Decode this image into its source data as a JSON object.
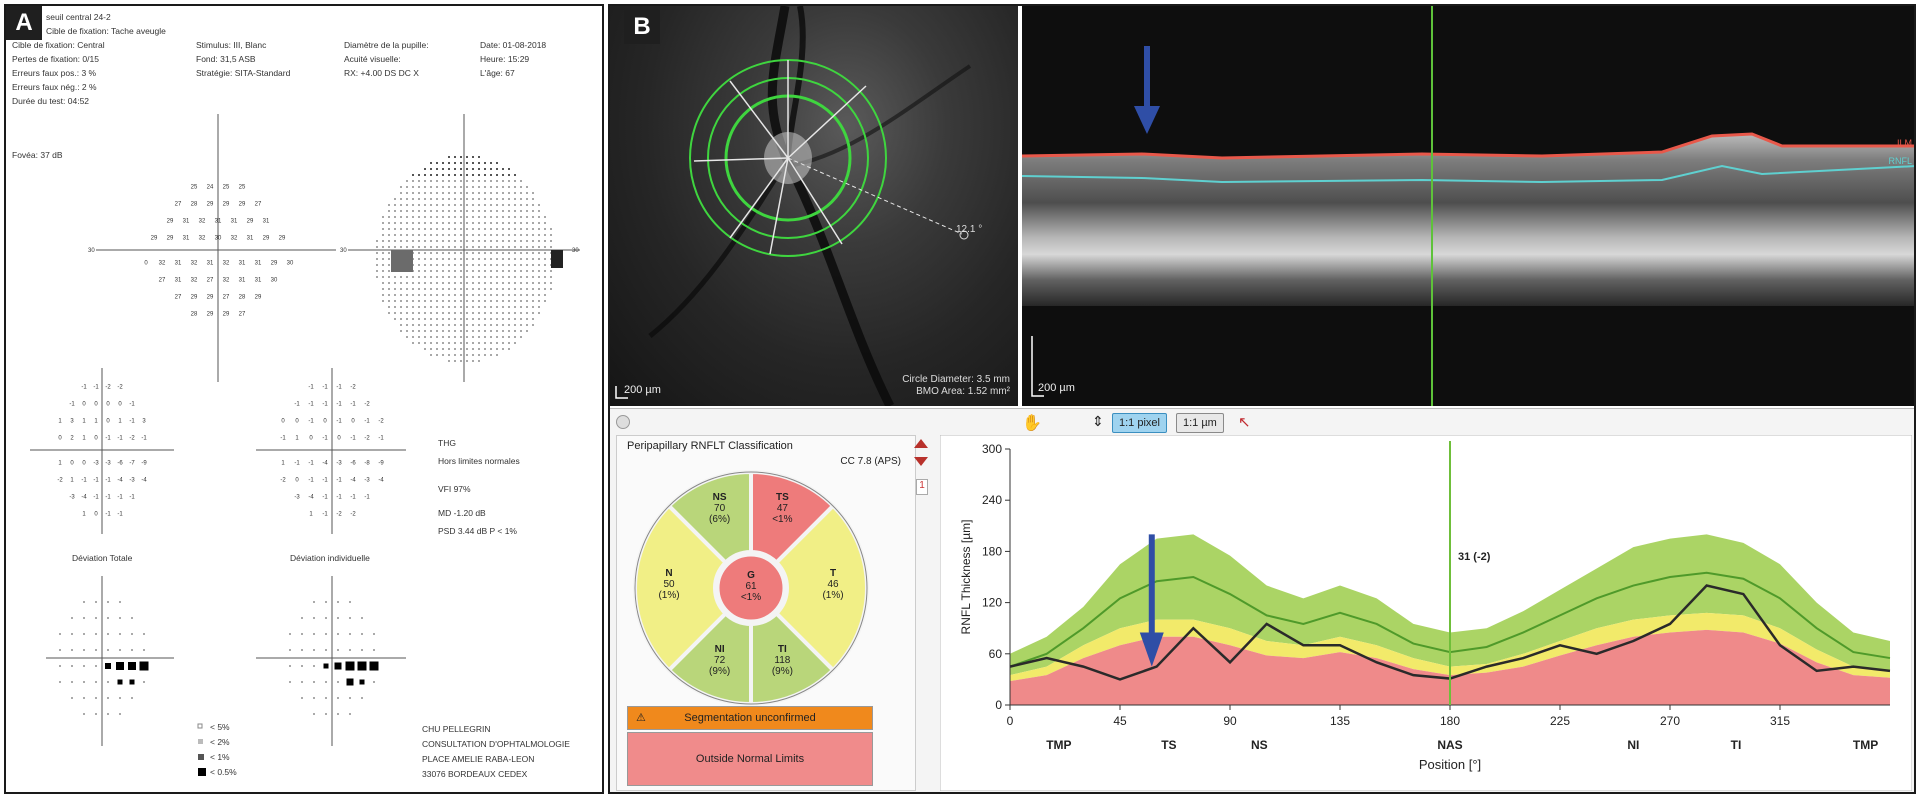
{
  "panel_a": {
    "label": "A",
    "header_left": [
      "seuil central 24-2",
      "Cible de fixation: Tache aveugle",
      "Cible de fixation: Central",
      "Pertes de fixation: 0/15",
      "Erreurs faux pos.: 3 %",
      "Erreurs faux nég.: 2 %",
      "Durée du test: 04:52"
    ],
    "header_mid": [
      "Stimulus: III, Blanc",
      "Fond: 31,5 ASB",
      "Stratégie: SITA-Standard"
    ],
    "header_mid2": [
      "Diamètre de la pupille:",
      "Acuité visuelle:",
      "RX: +4.00 DS      DC X"
    ],
    "header_right": [
      "Date: 01-08-2018",
      "Heure: 15:29",
      "L'âge: 67"
    ],
    "fovea": "Fovéa: 37 dB",
    "ght_label": "THG",
    "ght_value": "Hors limites normales",
    "vfi": "VFI      97%",
    "md": "MD      -1.20 dB",
    "psd": "PSD     3.44 dB  P < 1%",
    "total_dev_title": "Déviation Totale",
    "pattern_dev_title": "Déviation individuelle",
    "legend": [
      "< 5%",
      "< 2%",
      "< 1%",
      "< 0.5%"
    ],
    "address": [
      "CHU PELLEGRIN",
      "CONSULTATION D'OPHTALMOLOGIE",
      "PLACE AMELIE RABA-LEON",
      "33076 BORDEAUX CEDEX"
    ],
    "threshold_rows": [
      [
        "25",
        "24",
        "25",
        "25"
      ],
      [
        "27",
        "28",
        "29",
        "29",
        "29",
        "27"
      ],
      [
        "29",
        "31",
        "32",
        "31",
        "31",
        "29",
        "31"
      ],
      [
        "29",
        "29",
        "31",
        "32",
        "30",
        "32",
        "31",
        "29",
        "29"
      ],
      [
        "0",
        "32",
        "31",
        "32",
        "31",
        "32",
        "31",
        "31",
        "29",
        "30"
      ],
      [
        "27",
        "31",
        "32",
        "27",
        "32",
        "31",
        "31",
        "30"
      ],
      [
        "27",
        "29",
        "29",
        "27",
        "28",
        "29"
      ],
      [
        "28",
        "29",
        "29",
        "27"
      ]
    ],
    "threshold_edge_left": "30",
    "threshold_edge_right": "30",
    "grey_edge_right": "30",
    "total_dev_rows": [
      [
        "-1",
        "-1",
        "-2",
        "-2"
      ],
      [
        "-1",
        "0",
        "0",
        "0",
        "0",
        "-1"
      ],
      [
        "1",
        "3",
        "1",
        "1",
        "0",
        "1",
        "-1",
        "3"
      ],
      [
        "0",
        "2",
        "1",
        "0",
        "-1",
        "-1",
        "-2",
        "-1"
      ],
      [
        "1",
        "0",
        "0",
        "-3",
        "-3",
        "-6",
        "-7",
        "-9"
      ],
      [
        "-2",
        "1",
        "-1",
        "-1",
        "-1",
        "-4",
        "-3",
        "-4"
      ],
      [
        "-3",
        "-4",
        "-1",
        "-1",
        "-1",
        "-1"
      ],
      [
        "1",
        "0",
        "-1",
        "-1"
      ]
    ],
    "pattern_dev_rows": [
      [
        "-1",
        "-1",
        "-1",
        "-2"
      ],
      [
        "-1",
        "-1",
        "-1",
        "-1",
        "-1",
        "-2"
      ],
      [
        "0",
        "0",
        "-1",
        "0",
        "-1",
        "0",
        "-1",
        "-2"
      ],
      [
        "-1",
        "1",
        "0",
        "-1",
        "0",
        "-1",
        "-2",
        "-1"
      ],
      [
        "1",
        "-1",
        "-1",
        "-4",
        "-3",
        "-6",
        "-8",
        "-9"
      ],
      [
        "-2",
        "0",
        "-1",
        "-1",
        "-1",
        "-4",
        "-3",
        "-4"
      ],
      [
        "-3",
        "-4",
        "-1",
        "-1",
        "-1",
        "-1"
      ],
      [
        "1",
        "-1",
        "-2",
        "-2"
      ]
    ]
  },
  "panel_b": {
    "label": "B",
    "fundus_angle": "12.1 °",
    "fundus_scale": "200 µm",
    "circle_diameter": "Circle Diameter: 3.5 mm",
    "bmo_area": "BMO Area: 1.52 mm²",
    "bscan_scale": "200 µm",
    "bscan_layer_top": "ILM",
    "bscan_layer_bottom": "RNFL",
    "toolbar": {
      "pixel_btn": "1:1 pixel",
      "um_btn": "1:1 µm"
    },
    "page_indicator": "1",
    "classification_title": "Peripapillary RNFLT Classification",
    "cc_label": "CC 7.8 (APS)",
    "sectors": [
      {
        "id": "NS",
        "name": "NS",
        "value": "70",
        "pct": "(6%)",
        "color": "#b9d67a"
      },
      {
        "id": "TS",
        "name": "TS",
        "value": "47",
        "pct": "<1%",
        "color": "#ee7b7b"
      },
      {
        "id": "T",
        "name": "T",
        "value": "46",
        "pct": "(1%)",
        "color": "#f1ef86"
      },
      {
        "id": "TI",
        "name": "TI",
        "value": "118",
        "pct": "(9%)",
        "color": "#b9d67a"
      },
      {
        "id": "NI",
        "name": "NI",
        "value": "72",
        "pct": "(9%)",
        "color": "#b9d67a"
      },
      {
        "id": "N",
        "name": "N",
        "value": "50",
        "pct": "(1%)",
        "color": "#f1ef86"
      },
      {
        "id": "G",
        "name": "G",
        "value": "61",
        "pct": "<1%",
        "color": "#ee7b7b"
      }
    ],
    "segmentation_warning": "Segmentation unconfirmed",
    "outside_limits": "Outside Normal Limits",
    "colors": {
      "green": "#9ccc4a",
      "yellow": "#f2ea6a",
      "red": "#ef8a8a",
      "orange": "#f0891c",
      "pink": "#f08b8b",
      "cursor": "#6fbf3a"
    }
  },
  "chart_data": {
    "type": "line",
    "title": "",
    "xlabel": "Position [°]",
    "ylabel": "RNFL Thickness [µm]",
    "xlim": [
      0,
      360
    ],
    "ylim": [
      0,
      300
    ],
    "xticks": [
      0,
      45,
      90,
      135,
      180,
      225,
      270,
      315
    ],
    "yticks": [
      0,
      60,
      120,
      180,
      240,
      300
    ],
    "sector_labels": [
      {
        "label": "TMP",
        "x": 20
      },
      {
        "label": "TS",
        "x": 65
      },
      {
        "label": "NS",
        "x": 102
      },
      {
        "label": "NAS",
        "x": 180
      },
      {
        "label": "NI",
        "x": 255
      },
      {
        "label": "TI",
        "x": 297
      },
      {
        "label": "TMP",
        "x": 350
      }
    ],
    "cursor": {
      "x": 180,
      "label": "31 (-2)"
    },
    "arrow_x": 58,
    "x": [
      0,
      15,
      30,
      45,
      60,
      75,
      90,
      105,
      120,
      135,
      150,
      165,
      180,
      195,
      210,
      225,
      240,
      255,
      270,
      285,
      300,
      315,
      330,
      345,
      360
    ],
    "series": [
      {
        "name": "",
        "role": "upper_normal",
        "values": [
          60,
          80,
          115,
          165,
          195,
          200,
          175,
          140,
          125,
          140,
          125,
          95,
          85,
          90,
          110,
          135,
          160,
          185,
          195,
          200,
          190,
          165,
          120,
          85,
          75
        ]
      },
      {
        "name": "",
        "role": "mean_normal",
        "values": [
          45,
          60,
          90,
          125,
          145,
          150,
          130,
          105,
          95,
          108,
          95,
          72,
          62,
          68,
          85,
          105,
          125,
          140,
          150,
          155,
          148,
          125,
          90,
          62,
          55
        ]
      },
      {
        "name": "",
        "role": "lower_5pct",
        "values": [
          35,
          45,
          70,
          90,
          100,
          100,
          90,
          75,
          70,
          80,
          70,
          55,
          45,
          48,
          60,
          75,
          90,
          100,
          105,
          108,
          105,
          90,
          65,
          45,
          40
        ]
      },
      {
        "name": "",
        "role": "lower_1pct",
        "values": [
          28,
          35,
          55,
          70,
          80,
          80,
          70,
          58,
          55,
          62,
          55,
          42,
          35,
          38,
          45,
          58,
          70,
          80,
          85,
          88,
          85,
          72,
          50,
          35,
          32
        ]
      },
      {
        "name": "",
        "role": "patient",
        "values": [
          45,
          55,
          45,
          30,
          45,
          90,
          50,
          95,
          70,
          70,
          50,
          35,
          31,
          45,
          55,
          70,
          60,
          75,
          95,
          140,
          130,
          70,
          40,
          45,
          40
        ]
      }
    ]
  }
}
